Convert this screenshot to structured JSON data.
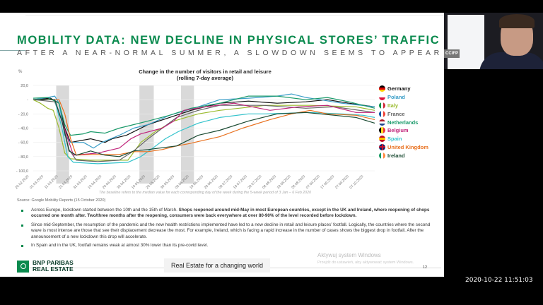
{
  "slide": {
    "title": "MOBILITY DATA: NEW DECLINE IN PHYSICAL STORES’ TRAFFIC",
    "subtitle": "AFTER A NEAR-NORMAL SUMMER, A SLOWDOWN SEEMS TO APPEAR",
    "source": "Source: Google Mobility Reports (15 October 2020)",
    "bullets": [
      {
        "normal": "Across Europe, lockdown started between the 10th and the 15th of March. ",
        "bold": "Shops reopened around mid-May in most European countries, except in the UK and Ireland, where reopening of shops occurred one month after. Two/three months after the reopening, consumers were back everywhere at over 80-90% of the level recorded before lockdown."
      },
      {
        "normal": "Since mid-September, the resumption of the pandemic and the new health restrictions implemented have led to a new decline in retail and leisure places’ footfall. Logically, the countries where the second wave is most intense are those that see their displacement decrease the most. For example, Ireland, which is facing a rapid increase in the number of cases shows the biggest drop in footfall. After the announcement of a new lockdown this drop will accelerate.",
        "bold": ""
      },
      {
        "normal": "In Spain and in the UK, footfall remains weak at almost 30% lower than its pre-covid level.",
        "bold": ""
      }
    ],
    "logo_line1": "BNP PARIBAS",
    "logo_line2": "REAL ESTATE",
    "tagline": "Real Estate for a changing world",
    "page_number": "12"
  },
  "windows_watermark": {
    "line1": "Aktywuj system Windows",
    "line2": "Przejdź do ustawień, aby aktywować system Windows."
  },
  "webcam": {
    "badge": "CCIFP"
  },
  "timestamp": "2020-10-22 11:51:03",
  "chart_data": {
    "type": "line",
    "title": "Change in the number of visitors in retail and leisure",
    "subtitle": "(rolling 7-day average)",
    "ylabel": "%",
    "note": "The baseline refers to the median value for each corresponding day of the week during the 5-week period of 3 Jan – 6 Feb 2020",
    "ylim": [
      -100,
      20
    ],
    "yticks": [
      "20,0",
      "-",
      "- 20,0",
      "- 40,0",
      "- 60,0",
      "- 80,0",
      "- 100,0"
    ],
    "ytick_values": [
      20,
      0,
      -20,
      -40,
      -60,
      -80,
      -100
    ],
    "x_start": "20.02.2020",
    "x_unit": "days since 20.02.2020",
    "xlim": [
      0,
      238
    ],
    "xticks": [
      "20.02.2020",
      "01.03.2020",
      "11.03.2020",
      "21.03.2020",
      "31.03.2020",
      "10.04.2020",
      "20.04.2020",
      "30.04.2020",
      "10.05.2020",
      "20.05.2020",
      "30.05.2020",
      "09.06.2020",
      "19.06.2020",
      "29.06.2020",
      "09.07.2020",
      "19.07.2020",
      "29.07.2020",
      "08.08.2020",
      "18.08.2020",
      "28.08.2020",
      "07.09.2020",
      "17.09.2020",
      "27.09.2020",
      "07.10.2020"
    ],
    "shaded_periods": [
      [
        16,
        25
      ],
      [
        74,
        84
      ],
      [
        103,
        112
      ]
    ],
    "series": [
      {
        "name": "Germany",
        "color": "#111111",
        "flag": [
          "#000000",
          "#dd0000",
          "#ffce00"
        ],
        "flag_dir": "h",
        "points": [
          [
            0,
            0
          ],
          [
            12,
            2
          ],
          [
            18,
            -5
          ],
          [
            22,
            -40
          ],
          [
            26,
            -60
          ],
          [
            40,
            -55
          ],
          [
            50,
            -60
          ],
          [
            55,
            -55
          ],
          [
            65,
            -50
          ],
          [
            80,
            -35
          ],
          [
            95,
            -25
          ],
          [
            110,
            -15
          ],
          [
            130,
            -5
          ],
          [
            150,
            -2
          ],
          [
            170,
            -5
          ],
          [
            190,
            -3
          ],
          [
            205,
            0
          ],
          [
            220,
            -5
          ],
          [
            238,
            -10
          ]
        ]
      },
      {
        "name": "Poland",
        "color": "#3a9ec8",
        "flag": [
          "#ffffff",
          "#dc143c"
        ],
        "flag_dir": "h",
        "points": [
          [
            0,
            0
          ],
          [
            10,
            3
          ],
          [
            15,
            5
          ],
          [
            18,
            -5
          ],
          [
            22,
            -50
          ],
          [
            26,
            -60
          ],
          [
            35,
            -60
          ],
          [
            42,
            -68
          ],
          [
            48,
            -60
          ],
          [
            60,
            -50
          ],
          [
            70,
            -40
          ],
          [
            80,
            -35
          ],
          [
            95,
            -22
          ],
          [
            115,
            -10
          ],
          [
            130,
            0
          ],
          [
            150,
            2
          ],
          [
            170,
            5
          ],
          [
            180,
            8
          ],
          [
            190,
            3
          ],
          [
            200,
            0
          ],
          [
            215,
            -5
          ],
          [
            238,
            -10
          ]
        ]
      },
      {
        "name": "Italy",
        "color": "#9bbb2e",
        "flag": [
          "#009246",
          "#ffffff",
          "#ce2b37"
        ],
        "flag_dir": "v",
        "points": [
          [
            0,
            0
          ],
          [
            5,
            -5
          ],
          [
            10,
            -12
          ],
          [
            14,
            -15
          ],
          [
            18,
            -40
          ],
          [
            22,
            -75
          ],
          [
            26,
            -83
          ],
          [
            40,
            -85
          ],
          [
            66,
            -85
          ],
          [
            75,
            -60
          ],
          [
            85,
            -45
          ],
          [
            98,
            -30
          ],
          [
            115,
            -20
          ],
          [
            130,
            -15
          ],
          [
            162,
            -8
          ],
          [
            193,
            -8
          ],
          [
            225,
            -10
          ],
          [
            238,
            -15
          ]
        ]
      },
      {
        "name": "France",
        "color": "#666666",
        "flag": [
          "#0055a4",
          "#ffffff",
          "#ef4135"
        ],
        "flag_dir": "v",
        "points": [
          [
            0,
            0
          ],
          [
            15,
            -3
          ],
          [
            20,
            -30
          ],
          [
            25,
            -70
          ],
          [
            30,
            -85
          ],
          [
            45,
            -87
          ],
          [
            60,
            -85
          ],
          [
            70,
            -72
          ],
          [
            80,
            -55
          ],
          [
            90,
            -40
          ],
          [
            100,
            -25
          ],
          [
            115,
            -15
          ],
          [
            130,
            -8
          ],
          [
            160,
            -8
          ],
          [
            190,
            -12
          ],
          [
            210,
            -10
          ],
          [
            238,
            -18
          ]
        ]
      },
      {
        "name": "Netherlands",
        "color": "#1a9a6a",
        "flag": [
          "#ae1c28",
          "#ffffff",
          "#21468b"
        ],
        "flag_dir": "h",
        "points": [
          [
            0,
            2
          ],
          [
            10,
            3
          ],
          [
            18,
            -5
          ],
          [
            22,
            -35
          ],
          [
            26,
            -50
          ],
          [
            35,
            -48
          ],
          [
            40,
            -45
          ],
          [
            50,
            -47
          ],
          [
            60,
            -40
          ],
          [
            70,
            -35
          ],
          [
            80,
            -30
          ],
          [
            95,
            -22
          ],
          [
            110,
            -12
          ],
          [
            130,
            -5
          ],
          [
            150,
            5
          ],
          [
            170,
            5
          ],
          [
            190,
            0
          ],
          [
            205,
            3
          ],
          [
            220,
            -3
          ],
          [
            238,
            -12
          ]
        ]
      },
      {
        "name": "Belgium",
        "color": "#c0247a",
        "flag": [
          "#000000",
          "#fdda24",
          "#ef3340"
        ],
        "flag_dir": "v",
        "points": [
          [
            0,
            0
          ],
          [
            15,
            0
          ],
          [
            20,
            -30
          ],
          [
            28,
            -78
          ],
          [
            45,
            -75
          ],
          [
            60,
            -68
          ],
          [
            68,
            -55
          ],
          [
            75,
            -48
          ],
          [
            90,
            -40
          ],
          [
            98,
            -30
          ],
          [
            105,
            -15
          ],
          [
            120,
            -10
          ],
          [
            140,
            -5
          ],
          [
            165,
            -15
          ],
          [
            185,
            -10
          ],
          [
            205,
            -8
          ],
          [
            225,
            -18
          ],
          [
            238,
            -18
          ]
        ]
      },
      {
        "name": "Spain",
        "color": "#33c3cc",
        "flag": [
          "#c60b1e",
          "#ffc400",
          "#c60b1e"
        ],
        "flag_dir": "h",
        "points": [
          [
            0,
            0
          ],
          [
            15,
            0
          ],
          [
            20,
            -40
          ],
          [
            24,
            -80
          ],
          [
            28,
            -88
          ],
          [
            45,
            -90
          ],
          [
            66,
            -88
          ],
          [
            75,
            -80
          ],
          [
            82,
            -70
          ],
          [
            92,
            -55
          ],
          [
            101,
            -45
          ],
          [
            115,
            -33
          ],
          [
            130,
            -25
          ],
          [
            150,
            -20
          ],
          [
            162,
            -20
          ],
          [
            193,
            -18
          ],
          [
            215,
            -20
          ],
          [
            230,
            -22
          ],
          [
            238,
            -25
          ]
        ]
      },
      {
        "name": "United Kingdom",
        "color": "#e8701e",
        "flag": [
          "#012169",
          "#ffffff",
          "#c8102e"
        ],
        "flag_dir": "uk",
        "points": [
          [
            0,
            0
          ],
          [
            18,
            0
          ],
          [
            22,
            -20
          ],
          [
            26,
            -55
          ],
          [
            30,
            -78
          ],
          [
            40,
            -77
          ],
          [
            60,
            -77
          ],
          [
            70,
            -73
          ],
          [
            80,
            -73
          ],
          [
            90,
            -70
          ],
          [
            100,
            -65
          ],
          [
            108,
            -62
          ],
          [
            130,
            -52
          ],
          [
            146,
            -40
          ],
          [
            165,
            -28
          ],
          [
            180,
            -20
          ],
          [
            193,
            -15
          ],
          [
            205,
            -20
          ],
          [
            225,
            -22
          ],
          [
            238,
            -28
          ]
        ]
      },
      {
        "name": "Ireland",
        "color": "#1a4a32",
        "flag": [
          "#169b62",
          "#ffffff",
          "#ff883e"
        ],
        "flag_dir": "v",
        "points": [
          [
            0,
            0
          ],
          [
            15,
            0
          ],
          [
            20,
            -30
          ],
          [
            25,
            -72
          ],
          [
            30,
            -78
          ],
          [
            40,
            -72
          ],
          [
            50,
            -78
          ],
          [
            60,
            -80
          ],
          [
            70,
            -72
          ],
          [
            80,
            -70
          ],
          [
            100,
            -65
          ],
          [
            115,
            -50
          ],
          [
            130,
            -43
          ],
          [
            150,
            -30
          ],
          [
            170,
            -20
          ],
          [
            190,
            -18
          ],
          [
            210,
            -22
          ],
          [
            225,
            -25
          ],
          [
            238,
            -33
          ]
        ]
      }
    ]
  }
}
